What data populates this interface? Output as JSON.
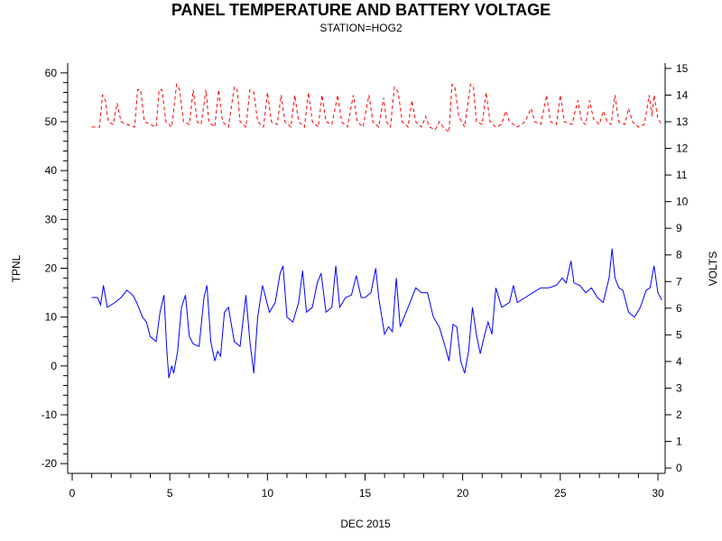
{
  "chart_data": {
    "type": "line",
    "title": "PANEL TEMPERATURE AND BATTERY VOLTAGE",
    "subtitle": "STATION=HOG2",
    "xlabel": "DEC 2015",
    "ylabel_left": "TPNL",
    "ylabel_right": "VOLTS",
    "xlim": [
      0,
      30
    ],
    "ylim_left": [
      -22,
      62
    ],
    "ylim_right": [
      -0.2,
      15.2
    ],
    "x_ticks": [
      0,
      5,
      10,
      15,
      20,
      25,
      30
    ],
    "y_ticks_left": [
      -20,
      -10,
      0,
      10,
      20,
      30,
      40,
      50,
      60
    ],
    "y_ticks_right": [
      0,
      1,
      2,
      3,
      4,
      5,
      6,
      7,
      8,
      9,
      10,
      11,
      12,
      13,
      14,
      15
    ],
    "series": [
      {
        "name": "TPNL",
        "axis": "left",
        "color": "#0000ff",
        "style": "solid",
        "points": [
          [
            1.0,
            14
          ],
          [
            1.3,
            14
          ],
          [
            1.45,
            12.5
          ],
          [
            1.6,
            16.5
          ],
          [
            1.8,
            12
          ],
          [
            2.2,
            13
          ],
          [
            2.5,
            14
          ],
          [
            2.8,
            15.5
          ],
          [
            3.1,
            14.5
          ],
          [
            3.3,
            13
          ],
          [
            3.6,
            10
          ],
          [
            3.8,
            9
          ],
          [
            4.0,
            6
          ],
          [
            4.3,
            5
          ],
          [
            4.5,
            11
          ],
          [
            4.7,
            14.5
          ],
          [
            4.85,
            3
          ],
          [
            4.95,
            -2.5
          ],
          [
            5.1,
            0
          ],
          [
            5.2,
            -1.5
          ],
          [
            5.4,
            3
          ],
          [
            5.6,
            12
          ],
          [
            5.8,
            14.5
          ],
          [
            6.0,
            6
          ],
          [
            6.2,
            4.5
          ],
          [
            6.5,
            4
          ],
          [
            6.75,
            14
          ],
          [
            6.9,
            16.5
          ],
          [
            7.1,
            5
          ],
          [
            7.3,
            1
          ],
          [
            7.45,
            3
          ],
          [
            7.6,
            2
          ],
          [
            7.8,
            11
          ],
          [
            8.0,
            12
          ],
          [
            8.3,
            5
          ],
          [
            8.6,
            4
          ],
          [
            8.9,
            14.5
          ],
          [
            9.1,
            5
          ],
          [
            9.3,
            -1.5
          ],
          [
            9.5,
            10
          ],
          [
            9.75,
            16.5
          ],
          [
            10.1,
            11
          ],
          [
            10.4,
            13
          ],
          [
            10.65,
            19
          ],
          [
            10.8,
            20.5
          ],
          [
            11.0,
            10
          ],
          [
            11.3,
            9
          ],
          [
            11.6,
            13
          ],
          [
            11.8,
            19.5
          ],
          [
            12.0,
            11
          ],
          [
            12.3,
            12
          ],
          [
            12.55,
            17
          ],
          [
            12.75,
            19
          ],
          [
            13.0,
            11
          ],
          [
            13.3,
            12
          ],
          [
            13.5,
            20.5
          ],
          [
            13.7,
            12
          ],
          [
            14.0,
            14
          ],
          [
            14.3,
            14.5
          ],
          [
            14.55,
            18.5
          ],
          [
            14.8,
            14
          ],
          [
            15.0,
            14
          ],
          [
            15.3,
            15
          ],
          [
            15.55,
            20
          ],
          [
            15.7,
            14
          ],
          [
            16.0,
            6.5
          ],
          [
            16.2,
            8
          ],
          [
            16.4,
            7
          ],
          [
            16.6,
            18
          ],
          [
            16.8,
            8
          ],
          [
            17.0,
            10
          ],
          [
            17.3,
            13
          ],
          [
            17.6,
            16
          ],
          [
            17.9,
            15
          ],
          [
            18.2,
            15
          ],
          [
            18.5,
            10
          ],
          [
            18.8,
            8
          ],
          [
            19.1,
            4
          ],
          [
            19.3,
            1
          ],
          [
            19.5,
            8.5
          ],
          [
            19.7,
            8
          ],
          [
            19.9,
            1
          ],
          [
            20.1,
            -1.5
          ],
          [
            20.3,
            3
          ],
          [
            20.5,
            12
          ],
          [
            20.7,
            6.5
          ],
          [
            20.9,
            2.5
          ],
          [
            21.1,
            6
          ],
          [
            21.3,
            9
          ],
          [
            21.5,
            6.5
          ],
          [
            21.7,
            16
          ],
          [
            22.0,
            12
          ],
          [
            22.4,
            13
          ],
          [
            22.6,
            16.5
          ],
          [
            22.8,
            13
          ],
          [
            23.2,
            14
          ],
          [
            23.6,
            15
          ],
          [
            24.0,
            16
          ],
          [
            24.4,
            16
          ],
          [
            24.8,
            16.5
          ],
          [
            25.1,
            18
          ],
          [
            25.3,
            17
          ],
          [
            25.55,
            21.5
          ],
          [
            25.7,
            17
          ],
          [
            26.0,
            16.5
          ],
          [
            26.3,
            15
          ],
          [
            26.6,
            16
          ],
          [
            26.9,
            14
          ],
          [
            27.2,
            13
          ],
          [
            27.5,
            18
          ],
          [
            27.65,
            24
          ],
          [
            27.8,
            18
          ],
          [
            28.0,
            16
          ],
          [
            28.2,
            15.5
          ],
          [
            28.5,
            11
          ],
          [
            28.8,
            10
          ],
          [
            29.1,
            12
          ],
          [
            29.4,
            15.5
          ],
          [
            29.6,
            16
          ],
          [
            29.8,
            20.5
          ],
          [
            30.0,
            15
          ],
          [
            30.2,
            13.5
          ]
        ]
      },
      {
        "name": "VOLTS",
        "axis": "right",
        "color": "#ff0000",
        "style": "dashed",
        "points": [
          [
            1.0,
            12.8
          ],
          [
            1.4,
            12.8
          ],
          [
            1.55,
            14.0
          ],
          [
            1.7,
            13.8
          ],
          [
            1.85,
            13.0
          ],
          [
            2.1,
            12.9
          ],
          [
            2.3,
            13.7
          ],
          [
            2.5,
            13.0
          ],
          [
            2.8,
            12.9
          ],
          [
            3.2,
            12.8
          ],
          [
            3.35,
            14.2
          ],
          [
            3.5,
            14.2
          ],
          [
            3.7,
            13.0
          ],
          [
            4.0,
            12.9
          ],
          [
            4.3,
            12.8
          ],
          [
            4.45,
            14.2
          ],
          [
            4.6,
            14.2
          ],
          [
            4.8,
            13.0
          ],
          [
            5.1,
            12.8
          ],
          [
            5.35,
            14.4
          ],
          [
            5.5,
            14.2
          ],
          [
            5.7,
            13.0
          ],
          [
            6.0,
            12.9
          ],
          [
            6.2,
            14.2
          ],
          [
            6.4,
            13.0
          ],
          [
            6.6,
            12.9
          ],
          [
            6.85,
            14.2
          ],
          [
            7.0,
            13.0
          ],
          [
            7.3,
            12.8
          ],
          [
            7.5,
            14.2
          ],
          [
            7.7,
            13.0
          ],
          [
            8.0,
            12.8
          ],
          [
            8.3,
            14.3
          ],
          [
            8.45,
            14.2
          ],
          [
            8.6,
            13.0
          ],
          [
            8.9,
            12.8
          ],
          [
            9.1,
            14.2
          ],
          [
            9.3,
            14.1
          ],
          [
            9.5,
            13.0
          ],
          [
            9.8,
            12.8
          ],
          [
            10.0,
            14.1
          ],
          [
            10.2,
            13.0
          ],
          [
            10.5,
            12.9
          ],
          [
            10.7,
            14.0
          ],
          [
            10.9,
            13.0
          ],
          [
            11.2,
            12.8
          ],
          [
            11.4,
            14.0
          ],
          [
            11.6,
            13.0
          ],
          [
            11.9,
            12.8
          ],
          [
            12.1,
            14.1
          ],
          [
            12.3,
            13.0
          ],
          [
            12.6,
            12.8
          ],
          [
            12.8,
            14.0
          ],
          [
            13.0,
            13.0
          ],
          [
            13.3,
            12.9
          ],
          [
            13.6,
            14.0
          ],
          [
            13.8,
            13.0
          ],
          [
            14.1,
            12.8
          ],
          [
            14.4,
            14.0
          ],
          [
            14.6,
            13.0
          ],
          [
            14.9,
            12.8
          ],
          [
            15.2,
            14.0
          ],
          [
            15.4,
            13.0
          ],
          [
            15.7,
            12.8
          ],
          [
            15.95,
            13.9
          ],
          [
            16.1,
            13.0
          ],
          [
            16.3,
            12.8
          ],
          [
            16.5,
            14.3
          ],
          [
            16.7,
            14.1
          ],
          [
            16.9,
            13.0
          ],
          [
            17.2,
            12.8
          ],
          [
            17.4,
            13.8
          ],
          [
            17.6,
            13.0
          ],
          [
            17.9,
            12.8
          ],
          [
            18.1,
            13.2
          ],
          [
            18.3,
            12.8
          ],
          [
            18.6,
            12.7
          ],
          [
            18.8,
            13.0
          ],
          [
            19.0,
            12.8
          ],
          [
            19.3,
            12.6
          ],
          [
            19.45,
            14.4
          ],
          [
            19.6,
            14.3
          ],
          [
            19.8,
            13.2
          ],
          [
            20.1,
            12.8
          ],
          [
            20.4,
            14.4
          ],
          [
            20.55,
            14.3
          ],
          [
            20.7,
            13.0
          ],
          [
            21.0,
            12.9
          ],
          [
            21.2,
            14.1
          ],
          [
            21.4,
            13.0
          ],
          [
            21.7,
            12.8
          ],
          [
            22.0,
            12.9
          ],
          [
            22.2,
            13.4
          ],
          [
            22.4,
            13.0
          ],
          [
            22.8,
            12.8
          ],
          [
            23.2,
            13.0
          ],
          [
            23.5,
            13.5
          ],
          [
            23.7,
            13.0
          ],
          [
            24.0,
            12.9
          ],
          [
            24.3,
            14.0
          ],
          [
            24.5,
            13.0
          ],
          [
            24.8,
            12.9
          ],
          [
            25.0,
            14.0
          ],
          [
            25.2,
            13.0
          ],
          [
            25.6,
            12.9
          ],
          [
            25.9,
            13.8
          ],
          [
            26.1,
            13.0
          ],
          [
            26.3,
            12.9
          ],
          [
            26.5,
            13.8
          ],
          [
            26.7,
            13.1
          ],
          [
            27.0,
            12.9
          ],
          [
            27.2,
            13.4
          ],
          [
            27.4,
            13.0
          ],
          [
            27.6,
            12.9
          ],
          [
            27.8,
            14.0
          ],
          [
            28.0,
            13.0
          ],
          [
            28.3,
            12.9
          ],
          [
            28.5,
            13.5
          ],
          [
            28.7,
            13.0
          ],
          [
            29.0,
            12.8
          ],
          [
            29.3,
            12.9
          ],
          [
            29.55,
            14.0
          ],
          [
            29.7,
            13.2
          ],
          [
            29.8,
            14.0
          ],
          [
            30.0,
            13.1
          ],
          [
            30.2,
            12.9
          ]
        ]
      }
    ]
  }
}
